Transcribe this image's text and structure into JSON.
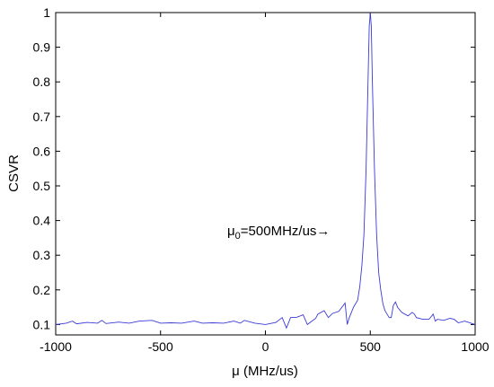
{
  "chart_data": {
    "type": "line",
    "title": "",
    "xlabel": "μ (MHz/us)",
    "ylabel": "CSVR",
    "xlim": [
      -1000,
      1000
    ],
    "ylim": [
      0.07,
      1
    ],
    "xticks": [
      -1000,
      -500,
      0,
      500,
      1000
    ],
    "yticks": [
      0.1,
      0.2,
      0.3,
      0.4,
      0.5,
      0.6,
      0.7,
      0.8,
      0.9,
      1
    ],
    "grid": false,
    "legend": "none",
    "series_color": "#3a3ad6",
    "annotation": {
      "text_main": "μ",
      "text_sub": "0",
      "text_rest": "=500MHz/us",
      "arrow": "→",
      "x": 500,
      "y": 0.25
    },
    "series": [
      {
        "x": [
          -1000,
          -950,
          -920,
          -900,
          -850,
          -800,
          -780,
          -760,
          -700,
          -650,
          -600,
          -540,
          -500,
          -450,
          -400,
          -340,
          -300,
          -250,
          -200,
          -150,
          -120,
          -100,
          -50,
          0,
          50,
          80,
          100,
          120,
          150,
          180,
          200,
          240,
          250,
          280,
          300,
          320,
          350,
          380,
          390,
          400,
          420,
          440,
          450,
          460,
          470,
          480,
          490,
          495,
          500,
          505,
          510,
          520,
          530,
          540,
          550,
          560,
          570,
          580,
          590,
          600,
          610,
          620,
          630,
          650,
          680,
          700,
          710,
          720,
          750,
          780,
          800,
          810,
          820,
          850,
          880,
          900,
          920,
          950,
          1000
        ],
        "y": [
          0.1,
          0.104,
          0.11,
          0.102,
          0.106,
          0.104,
          0.112,
          0.103,
          0.107,
          0.104,
          0.11,
          0.112,
          0.104,
          0.105,
          0.104,
          0.11,
          0.104,
          0.105,
          0.104,
          0.11,
          0.104,
          0.112,
          0.104,
          0.1,
          0.106,
          0.12,
          0.09,
          0.12,
          0.121,
          0.128,
          0.1,
          0.118,
          0.13,
          0.14,
          0.12,
          0.132,
          0.138,
          0.162,
          0.1,
          0.12,
          0.15,
          0.17,
          0.21,
          0.27,
          0.36,
          0.55,
          0.82,
          0.96,
          1.0,
          0.96,
          0.8,
          0.55,
          0.36,
          0.25,
          0.2,
          0.16,
          0.14,
          0.13,
          0.12,
          0.12,
          0.155,
          0.165,
          0.15,
          0.135,
          0.125,
          0.135,
          0.13,
          0.12,
          0.115,
          0.115,
          0.13,
          0.11,
          0.115,
          0.112,
          0.118,
          0.115,
          0.105,
          0.11,
          0.1
        ]
      }
    ]
  }
}
